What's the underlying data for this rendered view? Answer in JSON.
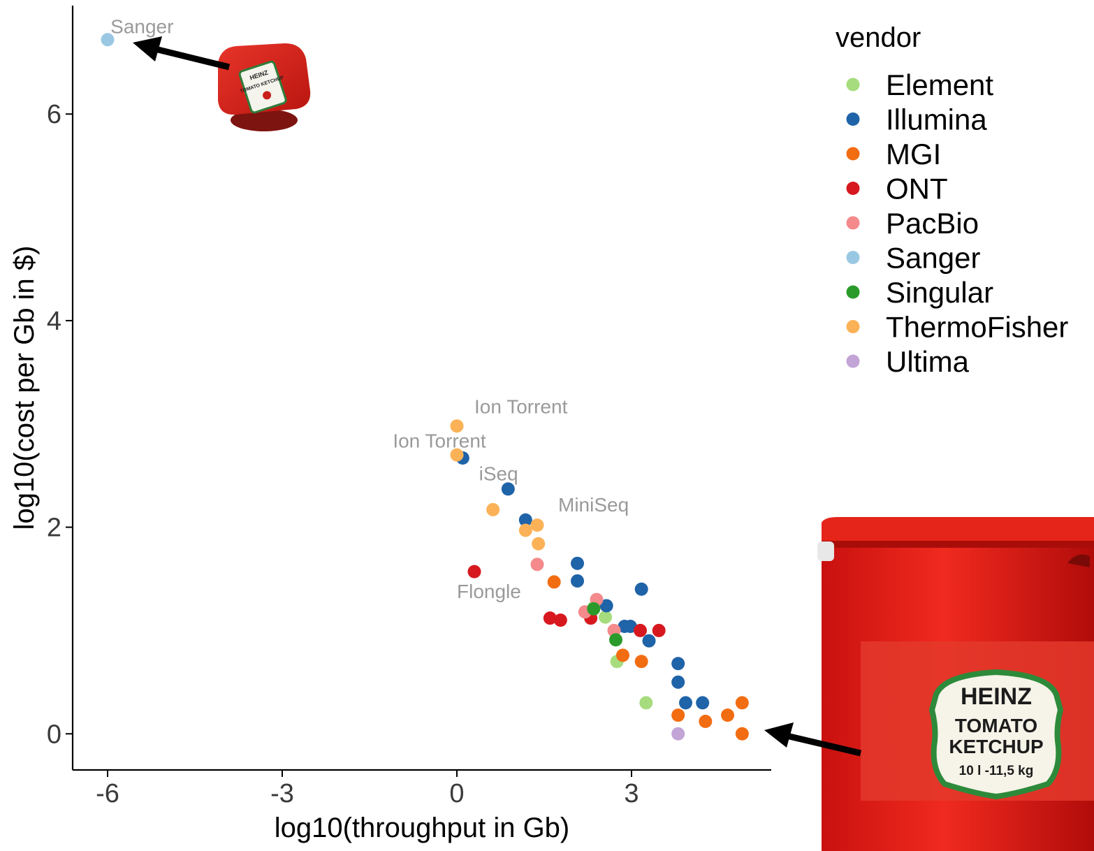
{
  "chart_data": {
    "type": "scatter",
    "xlabel": "log10(throughput in Gb)",
    "ylabel": "log10(cost per Gb in $)",
    "xlim": [
      -6.6,
      5.4
    ],
    "ylim": [
      -0.35,
      7.05
    ],
    "xticks": [
      -6,
      -3,
      0,
      3
    ],
    "yticks": [
      0,
      2,
      4,
      6
    ],
    "grid": false,
    "legend": {
      "title": "vendor",
      "placement": "right",
      "entries": [
        "Element",
        "Illumina",
        "MGI",
        "ONT",
        "PacBio",
        "Sanger",
        "Singular",
        "ThermoFisher",
        "Ultima"
      ]
    },
    "colors": {
      "Element": "#a6dc7d",
      "Illumina": "#1f63a8",
      "MGI": "#f26d12",
      "ONT": "#d7191f",
      "PacBio": "#f48a8c",
      "Sanger": "#9ac8e3",
      "Singular": "#2a9b2a",
      "ThermoFisher": "#fbb257",
      "Ultima": "#c2a4d6"
    },
    "series": [
      {
        "name": "Element",
        "points": [
          [
            2.55,
            1.13
          ],
          [
            2.75,
            0.7
          ],
          [
            3.25,
            0.3
          ],
          [
            2.35,
            1.22
          ]
        ]
      },
      {
        "name": "Illumina",
        "points": [
          [
            0.1,
            2.67
          ],
          [
            0.88,
            2.37
          ],
          [
            1.18,
            2.07
          ],
          [
            2.07,
            1.65
          ],
          [
            2.07,
            1.48
          ],
          [
            2.57,
            1.24
          ],
          [
            3.17,
            1.4
          ],
          [
            2.88,
            1.04
          ],
          [
            2.98,
            1.04
          ],
          [
            3.3,
            0.9
          ],
          [
            3.8,
            0.68
          ],
          [
            3.8,
            0.5
          ],
          [
            3.93,
            0.3
          ],
          [
            4.22,
            0.3
          ]
        ]
      },
      {
        "name": "MGI",
        "points": [
          [
            1.67,
            1.47
          ],
          [
            2.85,
            0.76
          ],
          [
            3.17,
            0.7
          ],
          [
            3.8,
            0.18
          ],
          [
            4.27,
            0.12
          ],
          [
            4.65,
            0.18
          ],
          [
            4.9,
            0.3
          ],
          [
            4.9,
            0.0
          ]
        ]
      },
      {
        "name": "ONT",
        "points": [
          [
            0.3,
            1.57
          ],
          [
            1.6,
            1.12
          ],
          [
            1.78,
            1.1
          ],
          [
            2.3,
            1.12
          ],
          [
            3.15,
            1.0
          ],
          [
            3.47,
            1.0
          ]
        ]
      },
      {
        "name": "PacBio",
        "points": [
          [
            1.38,
            1.64
          ],
          [
            2.2,
            1.18
          ],
          [
            2.4,
            1.3
          ],
          [
            2.7,
            1.0
          ]
        ]
      },
      {
        "name": "Sanger",
        "points": [
          [
            -6.0,
            6.72
          ]
        ]
      },
      {
        "name": "Singular",
        "points": [
          [
            2.35,
            1.21
          ],
          [
            2.73,
            0.91
          ]
        ]
      },
      {
        "name": "ThermoFisher",
        "points": [
          [
            0.0,
            2.98
          ],
          [
            0.0,
            2.7
          ],
          [
            0.62,
            2.17
          ],
          [
            1.18,
            1.97
          ],
          [
            1.38,
            2.02
          ],
          [
            1.4,
            1.84
          ]
        ]
      },
      {
        "name": "Ultima",
        "points": [
          [
            3.8,
            0.0
          ]
        ]
      }
    ],
    "annotations": [
      {
        "text": "Sanger",
        "x": -5.95,
        "y": 6.85
      },
      {
        "text": "Ion Torrent",
        "x": 0.3,
        "y": 3.17
      },
      {
        "text": "Ion Torrent",
        "x": -1.1,
        "y": 2.84
      },
      {
        "text": "iSeq",
        "x": 0.38,
        "y": 2.52
      },
      {
        "text": "MiniSeq",
        "x": 1.74,
        "y": 2.22
      },
      {
        "text": "Flongle",
        "x": 0.0,
        "y": 1.38
      }
    ]
  },
  "images": {
    "small_packet": {
      "brand": "HEINZ",
      "product": "TOMATO KETCHUP"
    },
    "large_bucket": {
      "brand": "HEINZ",
      "product_line1": "TOMATO",
      "product_line2": "KETCHUP",
      "size": "10 l -11,5 kg"
    }
  }
}
